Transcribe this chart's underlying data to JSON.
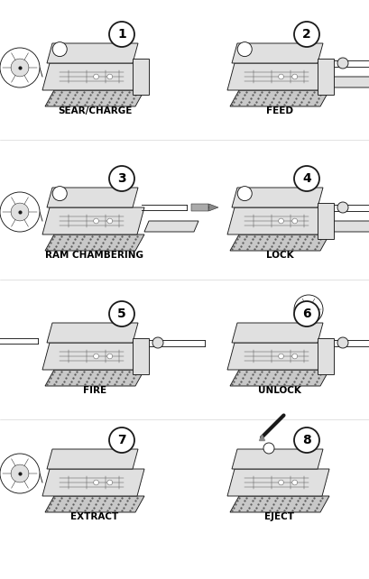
{
  "figsize": [
    4.1,
    6.42
  ],
  "dpi": 100,
  "background_color": "#ffffff",
  "panels": [
    {
      "num": 1,
      "label": "SEAR/CHARGE",
      "row": 0,
      "col": 0
    },
    {
      "num": 2,
      "label": "FEED",
      "row": 0,
      "col": 1
    },
    {
      "num": 3,
      "label": "RAM CHAMBERING",
      "row": 1,
      "col": 0
    },
    {
      "num": 4,
      "label": "LOCK",
      "row": 1,
      "col": 1
    },
    {
      "num": 5,
      "label": "FIRE",
      "row": 2,
      "col": 0
    },
    {
      "num": 6,
      "label": "UNLOCK",
      "row": 2,
      "col": 1
    },
    {
      "num": 7,
      "label": "EXTRACT",
      "row": 3,
      "col": 0
    },
    {
      "num": 8,
      "label": "EJECT",
      "row": 3,
      "col": 1
    }
  ],
  "label_fontsize": 7.5,
  "num_fontsize": 10,
  "lc": "#1a1a1a",
  "lw_thick": 1.0,
  "lw_med": 0.65,
  "lw_thin": 0.35,
  "fc_body": "#e0e0e0",
  "fc_white": "#ffffff",
  "fc_dark": "#aaaaaa",
  "fc_base": "#c8c8c8"
}
